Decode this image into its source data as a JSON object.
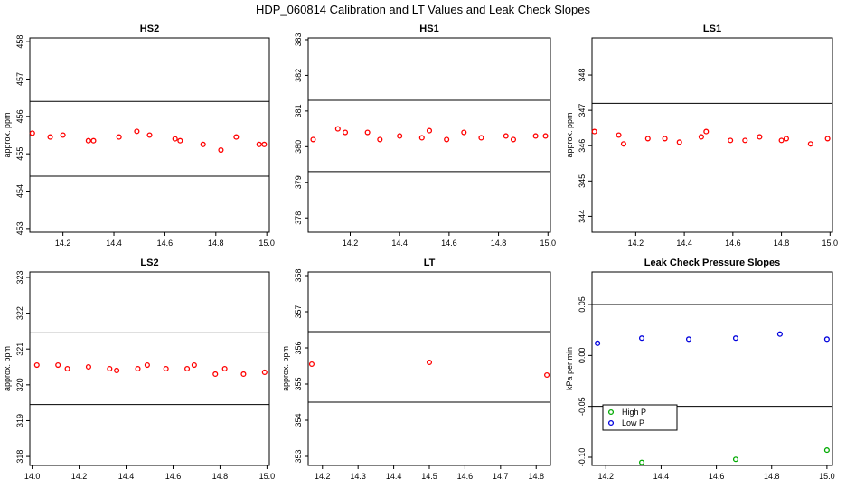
{
  "title": "HDP_060814  Calibration and LT Values and Leak Check Slopes",
  "colors": {
    "points": "#ff0000",
    "high_p": "#00aa00",
    "low_p": "#0000dd",
    "axis": "#000000"
  },
  "chart_data": [
    {
      "type": "scatter",
      "title": "HS2",
      "ylabel": "approx. ppm",
      "xlim": [
        14.07,
        15.01
      ],
      "ylim": [
        452.9,
        458.1
      ],
      "xticks": [
        14.2,
        14.4,
        14.6,
        14.8,
        15.0
      ],
      "xtick_labels": [
        "14.2",
        "14.4",
        "14.6",
        "14.8",
        "15.0"
      ],
      "yticks": [
        453,
        454,
        455,
        456,
        457,
        458
      ],
      "ytick_labels": [
        "453",
        "454",
        "455",
        "456",
        "457",
        "458"
      ],
      "hlines": [
        456.4,
        454.4
      ],
      "series": [
        {
          "x": [
            14.08,
            14.15,
            14.2,
            14.3,
            14.32,
            14.42,
            14.49,
            14.54,
            14.64,
            14.66,
            14.75,
            14.82,
            14.88,
            14.97,
            14.99
          ],
          "y": [
            455.55,
            455.45,
            455.5,
            455.35,
            455.35,
            455.45,
            455.6,
            455.5,
            455.4,
            455.35,
            455.25,
            455.1,
            455.45,
            455.25,
            455.25
          ]
        }
      ]
    },
    {
      "type": "scatter",
      "title": "HS1",
      "ylabel": "",
      "xlim": [
        14.03,
        15.01
      ],
      "ylim": [
        377.6,
        383.05
      ],
      "xticks": [
        14.2,
        14.4,
        14.6,
        14.8,
        15.0
      ],
      "xtick_labels": [
        "14.2",
        "14.4",
        "14.6",
        "14.8",
        "15.0"
      ],
      "yticks": [
        378,
        379,
        380,
        381,
        382,
        383
      ],
      "ytick_labels": [
        "378",
        "379",
        "380",
        "381",
        "382",
        "383"
      ],
      "hlines": [
        381.3,
        379.3
      ],
      "series": [
        {
          "x": [
            14.05,
            14.15,
            14.18,
            14.27,
            14.32,
            14.4,
            14.49,
            14.52,
            14.59,
            14.66,
            14.73,
            14.83,
            14.86,
            14.95,
            14.99
          ],
          "y": [
            380.2,
            380.5,
            380.4,
            380.4,
            380.2,
            380.3,
            380.25,
            380.45,
            380.2,
            380.4,
            380.25,
            380.3,
            380.2,
            380.3,
            380.3
          ]
        }
      ]
    },
    {
      "type": "scatter",
      "title": "LS1",
      "ylabel": "approx. ppm",
      "xlim": [
        14.02,
        15.01
      ],
      "ylim": [
        343.55,
        349.05
      ],
      "xticks": [
        14.2,
        14.4,
        14.6,
        14.8,
        15.0
      ],
      "xtick_labels": [
        "14.2",
        "14.4",
        "14.6",
        "14.8",
        "15.0"
      ],
      "yticks": [
        344,
        345,
        346,
        347,
        348
      ],
      "ytick_labels": [
        "344",
        "345",
        "346",
        "347",
        "348"
      ],
      "hlines": [
        347.2,
        345.2
      ],
      "series": [
        {
          "x": [
            14.03,
            14.13,
            14.15,
            14.25,
            14.32,
            14.38,
            14.47,
            14.49,
            14.59,
            14.65,
            14.71,
            14.8,
            14.82,
            14.92,
            14.99
          ],
          "y": [
            346.4,
            346.3,
            346.05,
            346.2,
            346.2,
            346.1,
            346.25,
            346.4,
            346.15,
            346.15,
            346.25,
            346.15,
            346.2,
            346.05,
            346.2
          ]
        }
      ]
    },
    {
      "type": "scatter",
      "title": "LS2",
      "ylabel": "approx. ppm",
      "xlim": [
        13.99,
        15.01
      ],
      "ylim": [
        317.75,
        323.15
      ],
      "xticks": [
        14.0,
        14.2,
        14.4,
        14.6,
        14.8,
        15.0
      ],
      "xtick_labels": [
        "14.0",
        "14.2",
        "14.4",
        "14.6",
        "14.8",
        "15.0"
      ],
      "yticks": [
        318,
        319,
        320,
        321,
        322,
        323
      ],
      "ytick_labels": [
        "318",
        "319",
        "320",
        "321",
        "322",
        "323"
      ],
      "hlines": [
        321.45,
        319.45
      ],
      "series": [
        {
          "x": [
            14.02,
            14.11,
            14.15,
            14.24,
            14.33,
            14.36,
            14.45,
            14.49,
            14.57,
            14.66,
            14.69,
            14.78,
            14.82,
            14.9,
            14.99
          ],
          "y": [
            320.55,
            320.55,
            320.45,
            320.5,
            320.45,
            320.4,
            320.45,
            320.55,
            320.45,
            320.45,
            320.55,
            320.3,
            320.45,
            320.3,
            320.35
          ]
        }
      ]
    },
    {
      "type": "scatter",
      "title": "LT",
      "ylabel": "approx. ppm",
      "xlim": [
        14.16,
        14.84
      ],
      "ylim": [
        352.75,
        358.1
      ],
      "xticks": [
        14.2,
        14.3,
        14.4,
        14.5,
        14.6,
        14.7,
        14.8
      ],
      "xtick_labels": [
        "14.2",
        "14.3",
        "14.4",
        "14.5",
        "14.6",
        "14.7",
        "14.8"
      ],
      "yticks": [
        353,
        354,
        355,
        356,
        357,
        358
      ],
      "ytick_labels": [
        "353",
        "354",
        "355",
        "356",
        "357",
        "358"
      ],
      "hlines": [
        356.45,
        354.5
      ],
      "series": [
        {
          "x": [
            14.17,
            14.5,
            14.83
          ],
          "y": [
            355.55,
            355.6,
            355.25
          ]
        }
      ]
    },
    {
      "type": "scatter",
      "title": "Leak Check Pressure Slopes",
      "ylabel": "kPa per min",
      "xlim": [
        14.15,
        15.02
      ],
      "ylim": [
        -0.108,
        0.082
      ],
      "xticks": [
        14.2,
        14.4,
        14.6,
        14.8,
        15.0
      ],
      "xtick_labels": [
        "14.2",
        "14.4",
        "14.6",
        "14.8",
        "15.0"
      ],
      "yticks": [
        -0.1,
        -0.05,
        0.0,
        0.05
      ],
      "ytick_labels": [
        "-0.10",
        "-0.05",
        "0.00",
        "0.05"
      ],
      "hlines": [
        0.05,
        -0.05
      ],
      "legend_position": "bottom-left",
      "series": [
        {
          "name": "High P",
          "x": [
            14.33,
            14.67,
            15.0
          ],
          "y": [
            -0.105,
            -0.102,
            -0.093
          ]
        },
        {
          "name": "Low P",
          "x": [
            14.17,
            14.33,
            14.5,
            14.67,
            14.83,
            15.0
          ],
          "y": [
            0.012,
            0.017,
            0.016,
            0.017,
            0.021,
            0.016
          ]
        }
      ]
    }
  ]
}
